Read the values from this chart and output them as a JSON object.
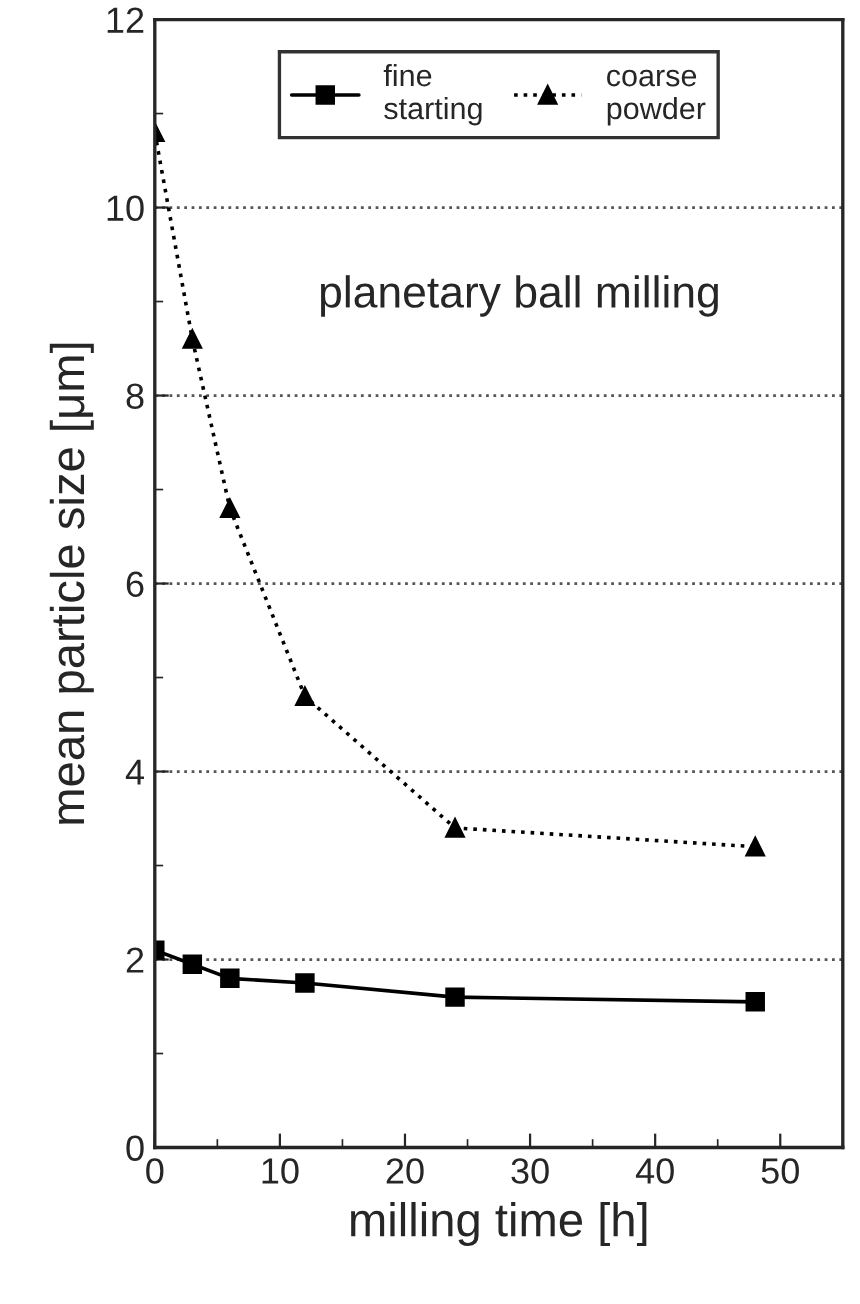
{
  "chart_data": {
    "type": "line",
    "xlabel": "milling time [h]",
    "ylabel": "mean particle size [μm]",
    "annotations": [
      "planetary ball milling"
    ],
    "x": [
      0,
      3,
      6,
      12,
      24,
      48
    ],
    "series": [
      {
        "name": "fine\nstarting",
        "color": "#000000",
        "values": [
          2.1,
          1.95,
          1.8,
          1.75,
          1.6,
          1.55
        ],
        "marker": "square",
        "line_style": "solid"
      },
      {
        "name": "coarse\npowder",
        "color": "#000000",
        "values": [
          10.8,
          8.6,
          6.8,
          4.8,
          3.4,
          3.2
        ],
        "marker": "triangle",
        "line_style": "dotted"
      }
    ],
    "xlim": [
      0,
      55
    ],
    "xticks": [
      0,
      10,
      20,
      30,
      40,
      50
    ],
    "ylim": [
      0,
      12
    ],
    "yticks": [
      0,
      2,
      4,
      6,
      8,
      10,
      12
    ],
    "grid": "y",
    "legend": "top"
  }
}
